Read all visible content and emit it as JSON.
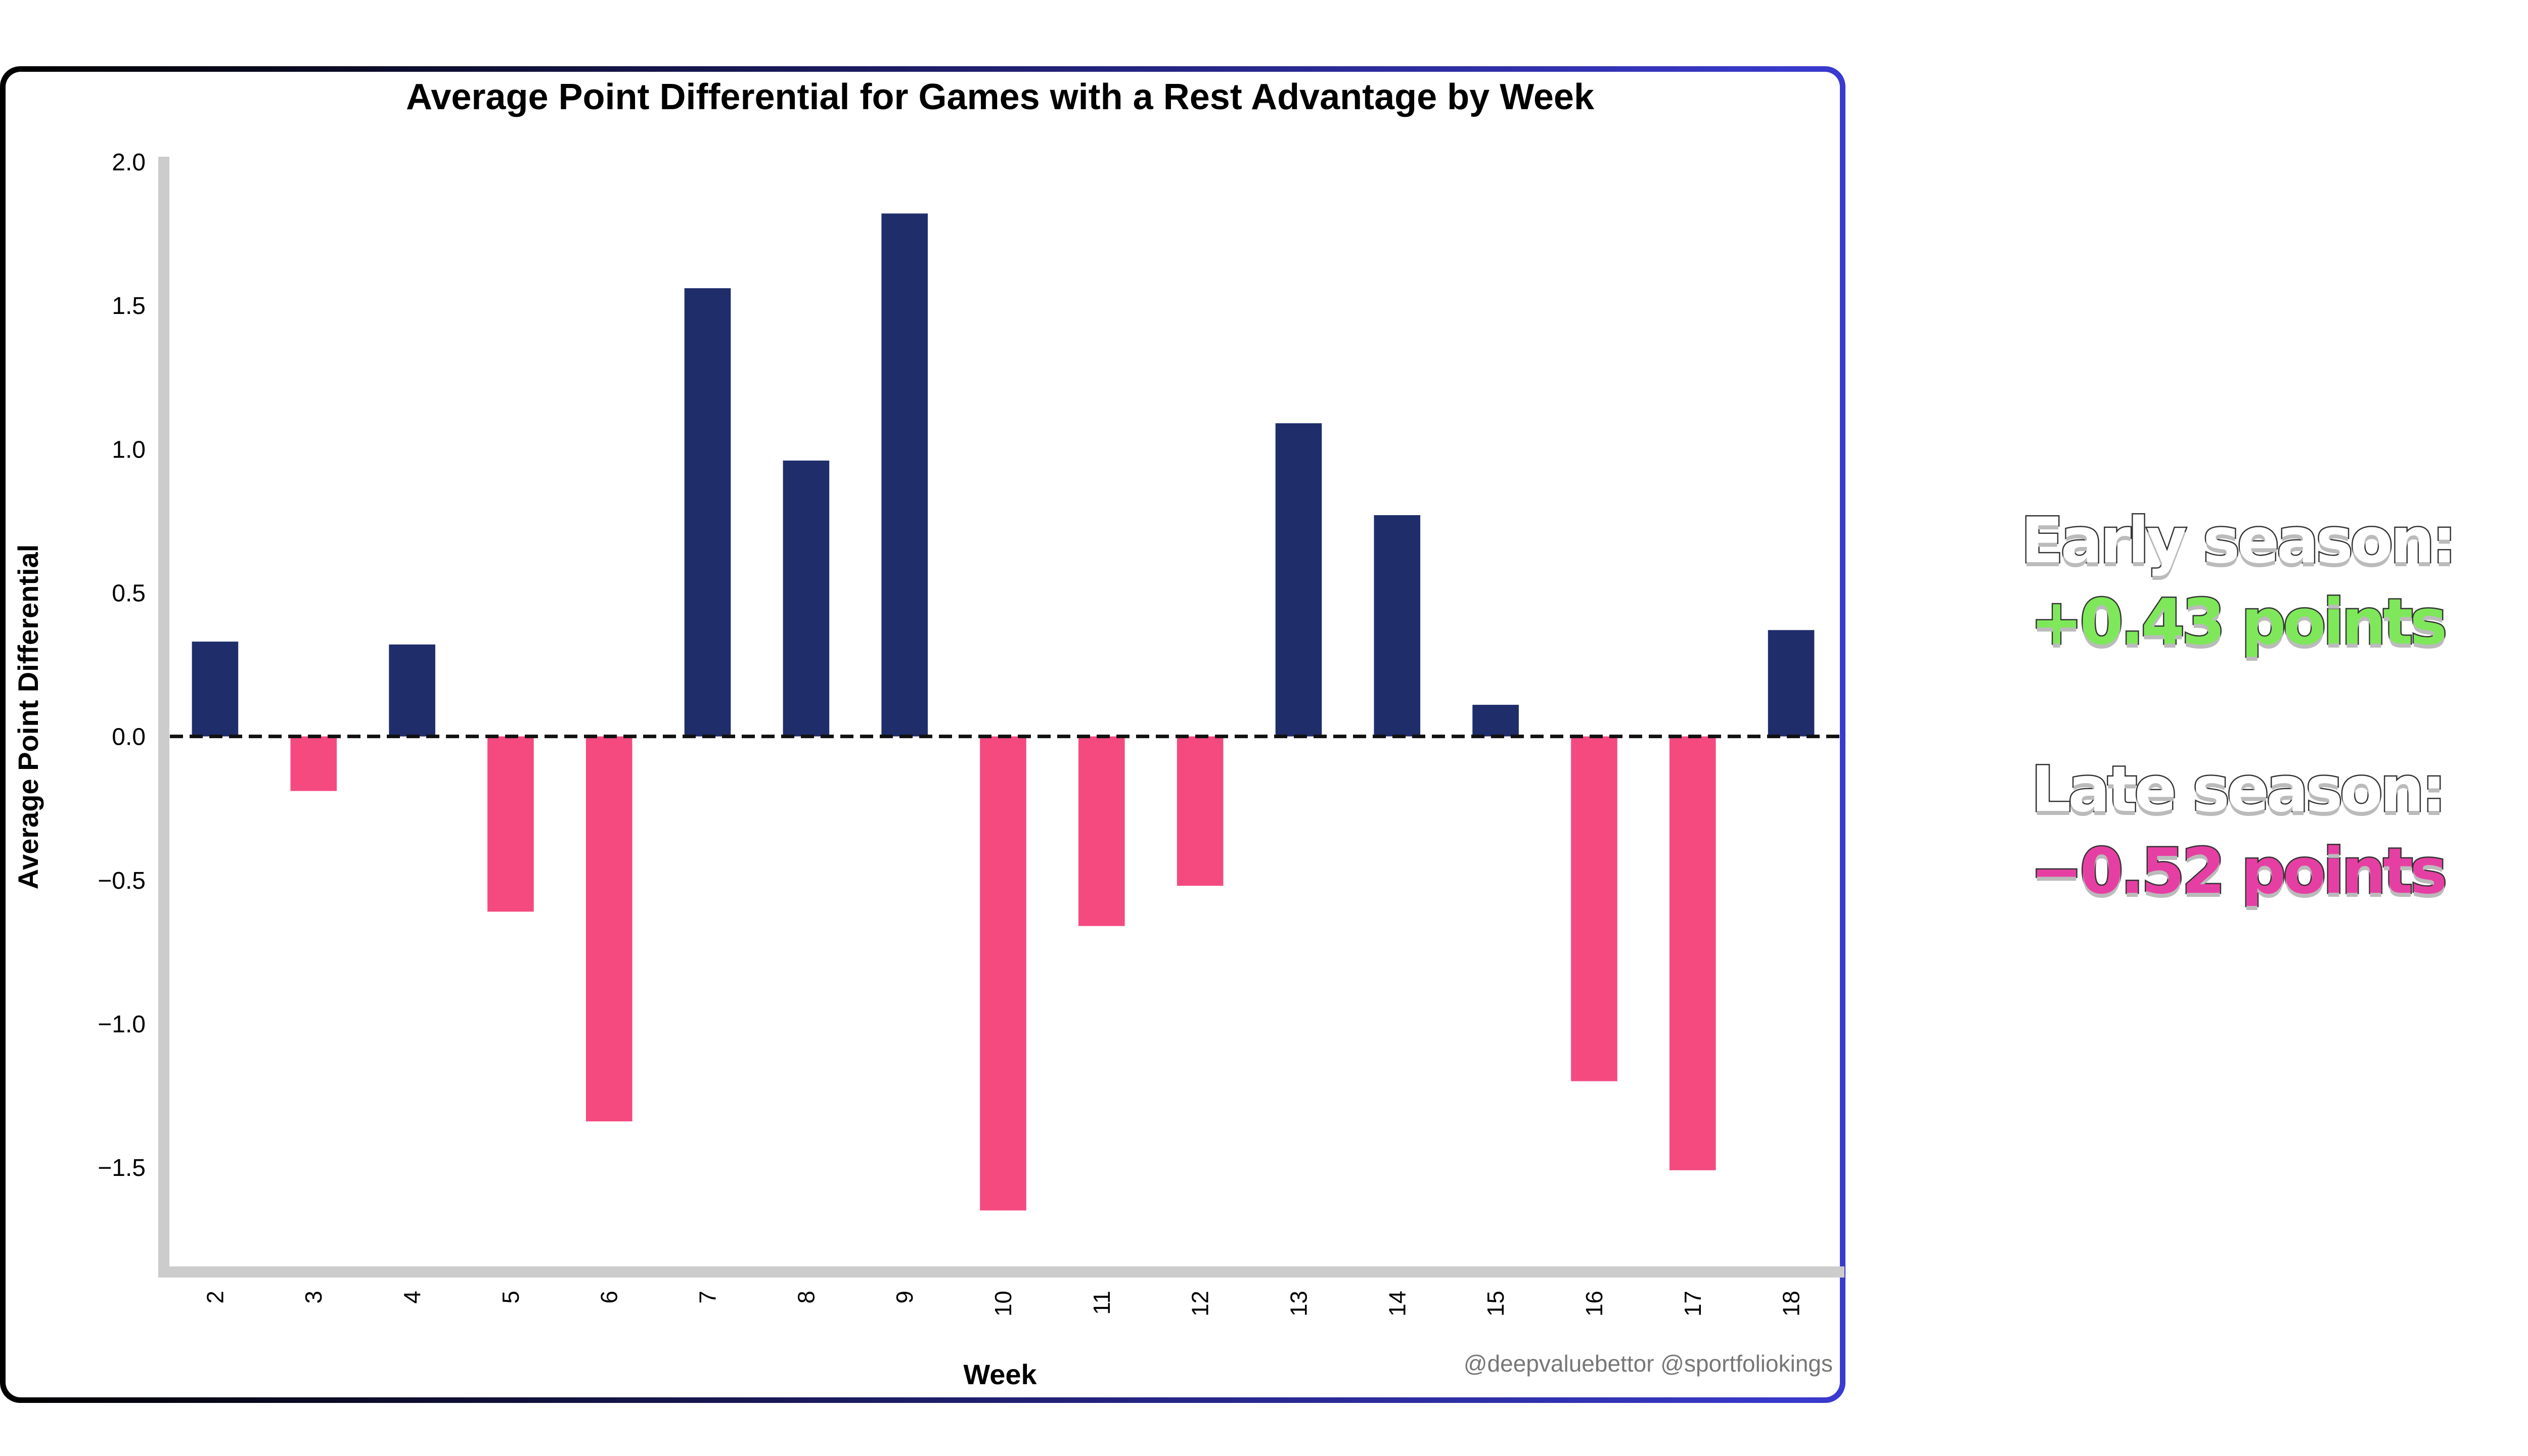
{
  "colors": {
    "positive_bar": "#1f2d6b",
    "negative_bar": "#f44a80",
    "axis_line": "#cccccc",
    "zero_line": "#111111",
    "text": "#000000",
    "watermark": "#777777",
    "early_value": "#7ee85a",
    "late_value": "#e63fa3"
  },
  "chart_data": {
    "type": "bar",
    "title": "Average Point Differential for Games with a Rest Advantage by Week",
    "xlabel": "Week",
    "ylabel": "Average Point Differential",
    "categories": [
      "2",
      "3",
      "4",
      "5",
      "6",
      "7",
      "8",
      "9",
      "10",
      "11",
      "12",
      "13",
      "14",
      "15",
      "16",
      "17",
      "18"
    ],
    "values": [
      0.33,
      -0.19,
      0.32,
      -0.61,
      -1.34,
      1.56,
      0.96,
      1.82,
      -1.65,
      -0.66,
      -0.52,
      1.09,
      0.77,
      0.11,
      -1.2,
      -1.51,
      0.37
    ],
    "ylim": [
      -1.85,
      2.0
    ],
    "yticks": [
      "2.0",
      "1.5",
      "1.0",
      "0.5",
      "0.0",
      "−0.5",
      "−1.0",
      "−1.5"
    ],
    "ytick_values": [
      2.0,
      1.5,
      1.0,
      0.5,
      0.0,
      -0.5,
      -1.0,
      -1.5
    ],
    "reference_line": {
      "y": 0.0,
      "style": "dashed"
    },
    "grid": false,
    "watermark": "@deepvaluebettor @sportfoliokings"
  },
  "side_stats": {
    "early_label": "Early season:",
    "early_value": "+0.43 points",
    "late_label": "Late season:",
    "late_value": "−0.52 points"
  }
}
